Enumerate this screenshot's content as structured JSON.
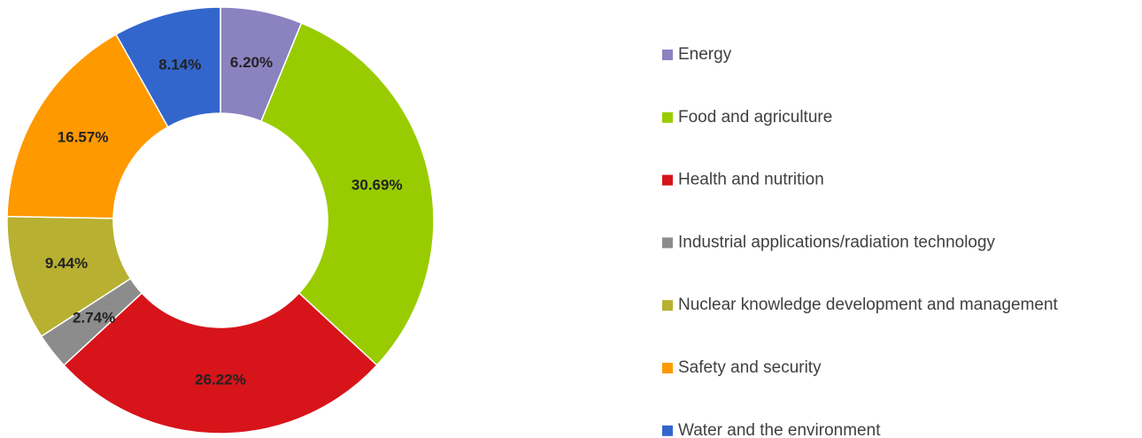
{
  "chart_data": {
    "type": "donut",
    "categories": [
      "Energy",
      "Food and agriculture",
      "Health and nutrition",
      "Industrial applications/radiation technology",
      "Nuclear knowledge development and management",
      "Safety and security",
      "Water and the environment"
    ],
    "values": [
      6.2,
      30.69,
      26.22,
      2.74,
      9.44,
      16.57,
      8.14
    ],
    "value_labels": [
      "6.20%",
      "30.69%",
      "26.22%",
      "2.74%",
      "9.44%",
      "16.57%",
      "8.14%"
    ],
    "colors": [
      "#8b82c0",
      "#99cc00",
      "#d7141a",
      "#8c8c8c",
      "#b8b030",
      "#ff9900",
      "#3366cc"
    ],
    "legend": "right"
  }
}
